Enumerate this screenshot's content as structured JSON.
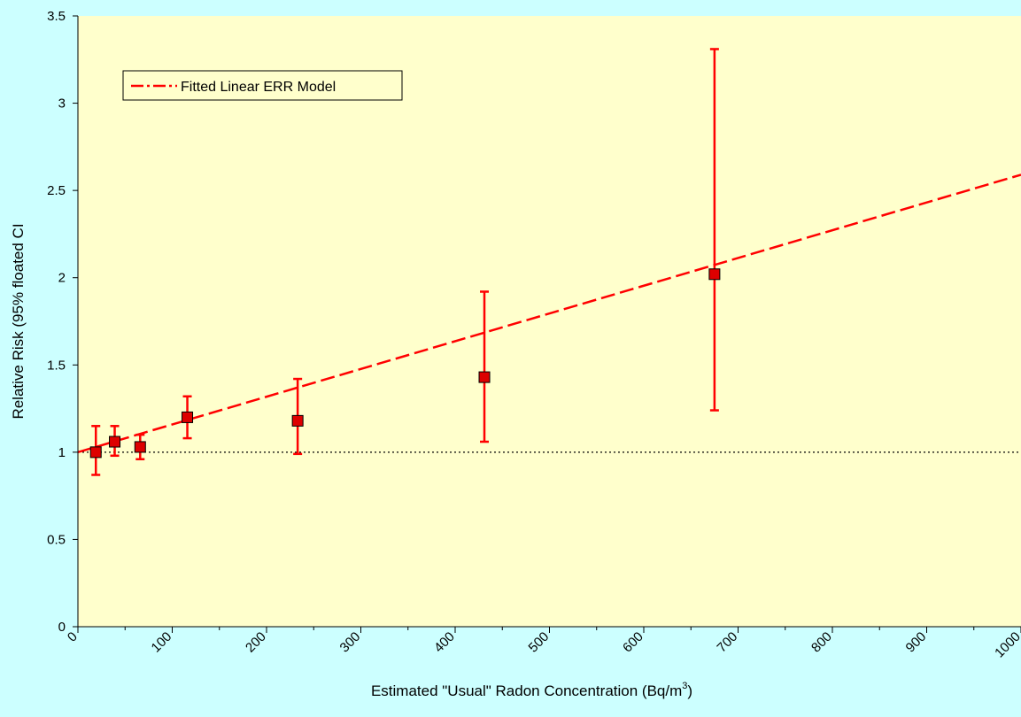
{
  "chart_data": {
    "type": "scatter",
    "title": "",
    "xlabel": "Estimated \"Usual\" Radon Concentration (Bq/m",
    "xlabel_superscript": "3",
    "xlabel_suffix": ")",
    "ylabel": "Relative Risk (95% floated CI",
    "xlim": [
      0,
      1000
    ],
    "ylim": [
      0,
      3.5
    ],
    "x_ticks": [
      0,
      100,
      200,
      300,
      400,
      500,
      600,
      700,
      800,
      900,
      1000
    ],
    "y_ticks": [
      0,
      0.5,
      1,
      1.5,
      2,
      2.5,
      3,
      3.5
    ],
    "y_tick_labels": [
      "0",
      "0.5",
      "1",
      "1.5",
      "2",
      "2.5",
      "3",
      "3.5"
    ],
    "grid": false,
    "legend_position": "top-left",
    "colors": {
      "plot_background": "#ffffcc",
      "page_background": "#ccffff",
      "series": "#ff0000",
      "marker_fill": "#dd0000",
      "reference_line": "#000000"
    },
    "series": [
      {
        "type": "scatter_with_error_bars",
        "points": [
          {
            "x": 19,
            "y": 1.0,
            "lo": 0.87,
            "hi": 1.15
          },
          {
            "x": 39,
            "y": 1.06,
            "lo": 0.98,
            "hi": 1.15
          },
          {
            "x": 66,
            "y": 1.03,
            "lo": 0.96,
            "hi": 1.1
          },
          {
            "x": 116,
            "y": 1.2,
            "lo": 1.08,
            "hi": 1.32
          },
          {
            "x": 233,
            "y": 1.18,
            "lo": 0.99,
            "hi": 1.42
          },
          {
            "x": 431,
            "y": 1.43,
            "lo": 1.06,
            "hi": 1.92
          },
          {
            "x": 675,
            "y": 2.02,
            "lo": 1.24,
            "hi": 3.31
          }
        ]
      },
      {
        "name": "Fitted Linear ERR Model",
        "type": "line",
        "style": "dash-dot",
        "x": [
          0,
          1000
        ],
        "y": [
          1.0,
          2.59
        ]
      },
      {
        "type": "reference_line",
        "style": "dotted",
        "x": [
          0,
          1000
        ],
        "y": [
          1,
          1
        ]
      }
    ]
  }
}
